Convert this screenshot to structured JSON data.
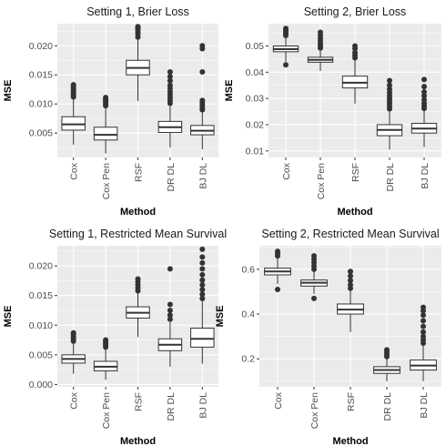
{
  "chart_data": [
    {
      "type": "boxplot",
      "title": "Setting 1, Brier Loss",
      "xlabel": "Method",
      "ylabel": "MSE",
      "ylim": [
        0.0008,
        0.0238
      ],
      "yticks": [
        0.005,
        0.01,
        0.015,
        0.02
      ],
      "ytick_labels": [
        "0.005",
        "0.010",
        "0.015",
        "0.020"
      ],
      "categories": [
        "Cox",
        "Cox Pen",
        "RSF",
        "DR DL",
        "BJ DL"
      ],
      "boxes": [
        {
          "low": 0.003,
          "q1": 0.0055,
          "median": 0.0065,
          "q3": 0.0078,
          "high": 0.011,
          "outliers": [
            0.0112,
            0.0115,
            0.0118,
            0.0121,
            0.0124,
            0.0127,
            0.013,
            0.0133
          ]
        },
        {
          "low": 0.0015,
          "q1": 0.0038,
          "median": 0.0047,
          "q3": 0.006,
          "high": 0.0095,
          "outliers": [
            0.0097,
            0.01,
            0.0103,
            0.0106,
            0.0108,
            0.0111
          ]
        },
        {
          "low": 0.0105,
          "q1": 0.015,
          "median": 0.0162,
          "q3": 0.0175,
          "high": 0.0212,
          "outliers": [
            0.0215,
            0.022,
            0.0224,
            0.0228,
            0.0231,
            0.0233
          ]
        },
        {
          "low": 0.0025,
          "q1": 0.0051,
          "median": 0.006,
          "q3": 0.007,
          "high": 0.0098,
          "outliers": [
            0.0101,
            0.0106,
            0.0111,
            0.0116,
            0.0121,
            0.0127,
            0.0132,
            0.014,
            0.0147,
            0.0155
          ]
        },
        {
          "low": 0.0022,
          "q1": 0.0047,
          "median": 0.0054,
          "q3": 0.0063,
          "high": 0.0088,
          "outliers": [
            0.009,
            0.0094,
            0.0098,
            0.0102,
            0.0106,
            0.0155,
            0.0195,
            0.02
          ]
        }
      ]
    },
    {
      "type": "boxplot",
      "title": "Setting 2, Brier Loss",
      "xlabel": "Method",
      "ylabel": "MSE",
      "ylim": [
        0.0075,
        0.0585
      ],
      "yticks": [
        0.01,
        0.02,
        0.03,
        0.04,
        0.05
      ],
      "ytick_labels": [
        "0.01",
        "0.02",
        "0.03",
        "0.04",
        "0.05"
      ],
      "categories": [
        "Cox",
        "Cox Pen",
        "RSF",
        "DR DL",
        "BJ DL"
      ],
      "boxes": [
        {
          "low": 0.044,
          "q1": 0.0478,
          "median": 0.0488,
          "q3": 0.05,
          "high": 0.0535,
          "outliers": [
            0.0428,
            0.054,
            0.0548,
            0.0555,
            0.0562,
            0.0567
          ]
        },
        {
          "low": 0.0405,
          "q1": 0.0438,
          "median": 0.0447,
          "q3": 0.0457,
          "high": 0.0488,
          "outliers": [
            0.0492,
            0.05,
            0.0508,
            0.0518,
            0.0528,
            0.054,
            0.0552
          ]
        },
        {
          "low": 0.028,
          "q1": 0.034,
          "median": 0.036,
          "q3": 0.0385,
          "high": 0.045,
          "outliers": [
            0.0455,
            0.0465,
            0.0475,
            0.049,
            0.05
          ]
        },
        {
          "low": 0.0105,
          "q1": 0.0158,
          "median": 0.018,
          "q3": 0.02,
          "high": 0.0255,
          "outliers": [
            0.026,
            0.027,
            0.028,
            0.029,
            0.03,
            0.031,
            0.0322,
            0.0335,
            0.035,
            0.0368
          ]
        },
        {
          "low": 0.0115,
          "q1": 0.0168,
          "median": 0.0185,
          "q3": 0.0205,
          "high": 0.0255,
          "outliers": [
            0.0262,
            0.0272,
            0.0282,
            0.0295,
            0.031,
            0.0325,
            0.0345,
            0.0372
          ]
        }
      ]
    },
    {
      "type": "boxplot",
      "title": "Setting 1, Restricted Mean Survival",
      "xlabel": "Method",
      "ylabel": "MSE",
      "ylim": [
        -0.0004,
        0.0234
      ],
      "yticks": [
        0.0,
        0.005,
        0.01,
        0.015,
        0.02
      ],
      "ytick_labels": [
        "0.000",
        "0.005",
        "0.010",
        "0.015",
        "0.020"
      ],
      "categories": [
        "Cox",
        "Cox Pen",
        "RSF",
        "DR DL",
        "BJ DL"
      ],
      "boxes": [
        {
          "low": 0.0018,
          "q1": 0.0036,
          "median": 0.0043,
          "q3": 0.005,
          "high": 0.007,
          "outliers": [
            0.0073,
            0.0077,
            0.0081,
            0.0085,
            0.0087
          ]
        },
        {
          "low": 0.0008,
          "q1": 0.0023,
          "median": 0.003,
          "q3": 0.0039,
          "high": 0.006,
          "outliers": [
            0.0063,
            0.0066,
            0.0069,
            0.0072,
            0.0075
          ]
        },
        {
          "low": 0.008,
          "q1": 0.0112,
          "median": 0.0121,
          "q3": 0.0131,
          "high": 0.0155,
          "outliers": [
            0.0158,
            0.0163,
            0.0168,
            0.0173,
            0.0178
          ]
        },
        {
          "low": 0.003,
          "q1": 0.0057,
          "median": 0.0067,
          "q3": 0.0077,
          "high": 0.0105,
          "outliers": [
            0.011,
            0.0117,
            0.0125,
            0.0135,
            0.0195
          ]
        },
        {
          "low": 0.0035,
          "q1": 0.0063,
          "median": 0.0077,
          "q3": 0.0095,
          "high": 0.014,
          "outliers": [
            0.0145,
            0.0152,
            0.016,
            0.0168,
            0.0176,
            0.0185,
            0.0195,
            0.0205,
            0.0215,
            0.0228
          ]
        }
      ]
    },
    {
      "type": "boxplot",
      "title": "Setting 2, Restricted Mean Survival",
      "xlabel": "Method",
      "ylabel": "MSE",
      "ylim": [
        0.075,
        0.705
      ],
      "yticks": [
        0.2,
        0.4,
        0.6
      ],
      "ytick_labels": [
        "0.2",
        "0.4",
        "0.6"
      ],
      "categories": [
        "Cox",
        "Cox Pen",
        "RSF",
        "DR DL",
        "BJ DL"
      ],
      "boxes": [
        {
          "low": 0.535,
          "q1": 0.575,
          "median": 0.59,
          "q3": 0.605,
          "high": 0.65,
          "outliers": [
            0.51,
            0.66,
            0.67,
            0.68
          ]
        },
        {
          "low": 0.49,
          "q1": 0.525,
          "median": 0.54,
          "q3": 0.552,
          "high": 0.59,
          "outliers": [
            0.47,
            0.6,
            0.615,
            0.63,
            0.645,
            0.66
          ]
        },
        {
          "low": 0.32,
          "q1": 0.4,
          "median": 0.42,
          "q3": 0.445,
          "high": 0.505,
          "outliers": [
            0.515,
            0.53,
            0.55,
            0.57,
            0.59
          ]
        },
        {
          "low": 0.1,
          "q1": 0.135,
          "median": 0.15,
          "q3": 0.165,
          "high": 0.205,
          "outliers": [
            0.21,
            0.22,
            0.23,
            0.24
          ]
        },
        {
          "low": 0.1,
          "q1": 0.15,
          "median": 0.17,
          "q3": 0.195,
          "high": 0.26,
          "outliers": [
            0.27,
            0.285,
            0.3,
            0.32,
            0.345,
            0.37,
            0.395,
            0.415,
            0.43
          ]
        }
      ]
    }
  ]
}
